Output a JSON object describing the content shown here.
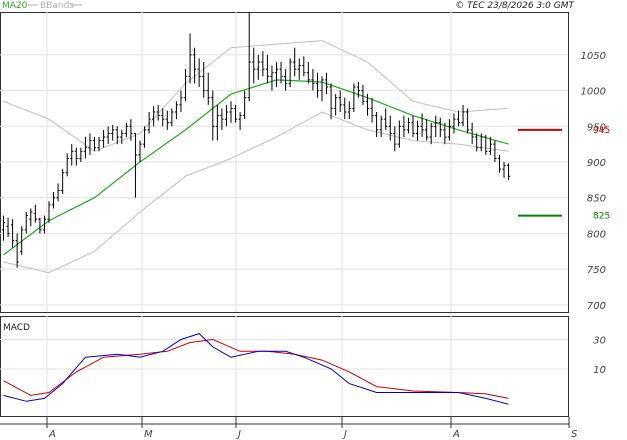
{
  "header": {
    "legend_ma": "MA20",
    "legend_bb": "BBands",
    "copyright": "© TEC 23/8/2026 3:0 GMT"
  },
  "macd_panel": {
    "title": "MACD"
  },
  "chart_data": [
    {
      "type": "line",
      "panel": "price",
      "x_labels": [
        "A",
        "M",
        "J",
        "J",
        "A",
        "S"
      ],
      "y_ticks": [
        1050,
        1000,
        950,
        900,
        850,
        800,
        750,
        700
      ],
      "ylim": [
        690,
        1110
      ],
      "grid": true,
      "levels": [
        {
          "name": "resistance",
          "label": "945",
          "value": 945,
          "color": "#cc0000"
        },
        {
          "name": "support",
          "label": "825",
          "value": 825,
          "color": "#008800"
        }
      ],
      "series_styles": {
        "ma20": "#22aa22",
        "bands": "#c0c0c0",
        "bars": "#000000"
      },
      "bars": [
        [
          0,
          805,
          825,
          790,
          815
        ],
        [
          1,
          810,
          822,
          795,
          800
        ],
        [
          2,
          812,
          820,
          780,
          790
        ],
        [
          3,
          790,
          800,
          752,
          760
        ],
        [
          4,
          775,
          810,
          770,
          805
        ],
        [
          5,
          805,
          830,
          800,
          825
        ],
        [
          6,
          820,
          835,
          810,
          830
        ],
        [
          7,
          828,
          840,
          815,
          820
        ],
        [
          8,
          820,
          822,
          800,
          805
        ],
        [
          9,
          805,
          825,
          800,
          820
        ],
        [
          10,
          820,
          845,
          815,
          840
        ],
        [
          11,
          840,
          858,
          835,
          850
        ],
        [
          12,
          850,
          870,
          845,
          860
        ],
        [
          13,
          860,
          890,
          855,
          885
        ],
        [
          14,
          885,
          912,
          880,
          905
        ],
        [
          15,
          905,
          925,
          895,
          915
        ],
        [
          16,
          915,
          920,
          895,
          905
        ],
        [
          17,
          905,
          920,
          900,
          915
        ],
        [
          18,
          915,
          935,
          905,
          920
        ],
        [
          19,
          920,
          940,
          910,
          930
        ],
        [
          20,
          930,
          935,
          915,
          920
        ],
        [
          21,
          920,
          935,
          915,
          930
        ],
        [
          22,
          930,
          945,
          920,
          935
        ],
        [
          23,
          935,
          950,
          925,
          940
        ],
        [
          24,
          940,
          952,
          930,
          945
        ],
        [
          25,
          945,
          950,
          925,
          935
        ],
        [
          26,
          935,
          945,
          925,
          940
        ],
        [
          27,
          940,
          955,
          935,
          950
        ],
        [
          28,
          950,
          960,
          930,
          940
        ],
        [
          29,
          940,
          940,
          850,
          910
        ],
        [
          30,
          910,
          930,
          900,
          925
        ],
        [
          31,
          925,
          950,
          920,
          945
        ],
        [
          32,
          945,
          970,
          940,
          960
        ],
        [
          33,
          960,
          978,
          950,
          970
        ],
        [
          34,
          970,
          980,
          958,
          965
        ],
        [
          35,
          965,
          975,
          950,
          960
        ],
        [
          36,
          960,
          972,
          945,
          955
        ],
        [
          37,
          955,
          975,
          950,
          970
        ],
        [
          38,
          970,
          985,
          960,
          980
        ],
        [
          39,
          980,
          1000,
          970,
          990
        ],
        [
          40,
          990,
          1030,
          985,
          1020
        ],
        [
          41,
          1020,
          1080,
          1010,
          1050
        ],
        [
          42,
          1050,
          1060,
          1010,
          1030
        ],
        [
          43,
          1030,
          1045,
          1005,
          1020
        ],
        [
          44,
          1020,
          1040,
          990,
          1000
        ],
        [
          45,
          1000,
          1025,
          980,
          990
        ],
        [
          46,
          990,
          1000,
          930,
          950
        ],
        [
          47,
          950,
          980,
          930,
          965
        ],
        [
          48,
          965,
          975,
          945,
          960
        ],
        [
          49,
          960,
          980,
          950,
          970
        ],
        [
          50,
          970,
          985,
          955,
          975
        ],
        [
          51,
          975,
          980,
          955,
          960
        ],
        [
          52,
          960,
          970,
          945,
          965
        ],
        [
          53,
          965,
          1000,
          960,
          990
        ],
        [
          54,
          990,
          1110,
          985,
          1040
        ],
        [
          55,
          1040,
          1060,
          1010,
          1030
        ],
        [
          56,
          1030,
          1050,
          1015,
          1040
        ],
        [
          57,
          1040,
          1055,
          1020,
          1030
        ],
        [
          58,
          1030,
          1050,
          1010,
          1020
        ],
        [
          59,
          1020,
          1035,
          1000,
          1025
        ],
        [
          60,
          1025,
          1040,
          1005,
          1030
        ],
        [
          61,
          1030,
          1040,
          1010,
          1020
        ],
        [
          62,
          1020,
          1030,
          1000,
          1010
        ],
        [
          63,
          1010,
          1045,
          1005,
          1040
        ],
        [
          64,
          1040,
          1060,
          1020,
          1030
        ],
        [
          65,
          1030,
          1045,
          1015,
          1035
        ],
        [
          66,
          1035,
          1048,
          1020,
          1025
        ],
        [
          67,
          1025,
          1040,
          1010,
          1015
        ],
        [
          68,
          1015,
          1030,
          1000,
          1010
        ],
        [
          69,
          1010,
          1025,
          990,
          1000
        ],
        [
          70,
          1000,
          1020,
          985,
          1015
        ],
        [
          71,
          1015,
          1025,
          995,
          1005
        ],
        [
          72,
          1005,
          1010,
          960,
          975
        ],
        [
          73,
          975,
          995,
          965,
          990
        ],
        [
          74,
          990,
          1000,
          970,
          980
        ],
        [
          75,
          980,
          990,
          960,
          970
        ],
        [
          76,
          970,
          985,
          960,
          975
        ],
        [
          77,
          975,
          1010,
          970,
          1005
        ],
        [
          78,
          1005,
          1012,
          990,
          1000
        ],
        [
          79,
          1000,
          1008,
          980,
          985
        ],
        [
          80,
          985,
          995,
          965,
          975
        ],
        [
          81,
          975,
          990,
          955,
          965
        ],
        [
          82,
          965,
          970,
          935,
          945
        ],
        [
          83,
          945,
          965,
          935,
          960
        ],
        [
          84,
          960,
          975,
          945,
          950
        ],
        [
          85,
          950,
          965,
          930,
          940
        ],
        [
          86,
          940,
          950,
          915,
          925
        ],
        [
          87,
          925,
          958,
          920,
          950
        ],
        [
          88,
          950,
          965,
          935,
          945
        ],
        [
          89,
          945,
          962,
          940,
          955
        ],
        [
          90,
          955,
          965,
          935,
          940
        ],
        [
          91,
          940,
          958,
          930,
          950
        ],
        [
          92,
          950,
          968,
          935,
          945
        ],
        [
          93,
          945,
          960,
          930,
          935
        ],
        [
          94,
          935,
          955,
          925,
          950
        ],
        [
          95,
          950,
          965,
          935,
          955
        ],
        [
          96,
          955,
          962,
          935,
          945
        ],
        [
          97,
          945,
          955,
          925,
          935
        ],
        [
          98,
          935,
          960,
          930,
          950
        ],
        [
          99,
          950,
          968,
          940,
          960
        ],
        [
          100,
          960,
          972,
          950,
          955
        ],
        [
          101,
          955,
          980,
          950,
          970
        ],
        [
          102,
          970,
          975,
          940,
          945
        ],
        [
          103,
          945,
          955,
          925,
          935
        ],
        [
          104,
          935,
          940,
          915,
          920
        ],
        [
          105,
          920,
          940,
          915,
          935
        ],
        [
          106,
          935,
          938,
          910,
          915
        ],
        [
          107,
          915,
          935,
          910,
          925
        ],
        [
          108,
          925,
          930,
          900,
          905
        ],
        [
          109,
          905,
          910,
          885,
          890
        ],
        [
          110,
          890,
          900,
          878,
          895
        ],
        [
          111,
          895,
          898,
          875,
          880
        ]
      ],
      "ma20": [
        [
          0,
          770
        ],
        [
          10,
          818
        ],
        [
          20,
          850
        ],
        [
          30,
          900
        ],
        [
          40,
          945
        ],
        [
          50,
          995
        ],
        [
          60,
          1015
        ],
        [
          70,
          1012
        ],
        [
          80,
          990
        ],
        [
          90,
          965
        ],
        [
          100,
          945
        ],
        [
          111,
          925
        ]
      ],
      "bb_upper": [
        [
          0,
          985
        ],
        [
          10,
          960
        ],
        [
          20,
          915
        ],
        [
          30,
          940
        ],
        [
          40,
          1010
        ],
        [
          50,
          1060
        ],
        [
          60,
          1065
        ],
        [
          70,
          1070
        ],
        [
          80,
          1040
        ],
        [
          90,
          985
        ],
        [
          100,
          970
        ],
        [
          111,
          975
        ]
      ],
      "bb_lower": [
        [
          0,
          760
        ],
        [
          10,
          745
        ],
        [
          20,
          775
        ],
        [
          30,
          830
        ],
        [
          40,
          880
        ],
        [
          50,
          905
        ],
        [
          60,
          935
        ],
        [
          70,
          970
        ],
        [
          80,
          945
        ],
        [
          90,
          930
        ],
        [
          100,
          925
        ],
        [
          111,
          915
        ]
      ]
    },
    {
      "type": "line",
      "panel": "macd",
      "title": "MACD",
      "y_ticks": [
        30,
        10
      ],
      "ylim": [
        -22,
        46
      ],
      "grid": true,
      "series_styles": {
        "macd": "#0000cc",
        "signal": "#cc0000"
      },
      "macd": [
        [
          0,
          -8
        ],
        [
          5,
          -12
        ],
        [
          9,
          -10
        ],
        [
          13,
          0
        ],
        [
          18,
          18
        ],
        [
          25,
          20
        ],
        [
          30,
          18
        ],
        [
          35,
          22
        ],
        [
          39,
          30
        ],
        [
          43,
          34
        ],
        [
          46,
          25
        ],
        [
          50,
          18
        ],
        [
          56,
          22
        ],
        [
          62,
          22
        ],
        [
          66,
          18
        ],
        [
          72,
          10
        ],
        [
          76,
          0
        ],
        [
          82,
          -6
        ],
        [
          90,
          -6
        ],
        [
          100,
          -6
        ],
        [
          106,
          -10
        ],
        [
          111,
          -14
        ]
      ],
      "signal": [
        [
          0,
          2
        ],
        [
          6,
          -8
        ],
        [
          10,
          -6
        ],
        [
          16,
          8
        ],
        [
          22,
          18
        ],
        [
          30,
          20
        ],
        [
          36,
          22
        ],
        [
          41,
          28
        ],
        [
          46,
          30
        ],
        [
          52,
          22
        ],
        [
          58,
          22
        ],
        [
          64,
          20
        ],
        [
          70,
          16
        ],
        [
          76,
          8
        ],
        [
          82,
          -2
        ],
        [
          90,
          -5
        ],
        [
          100,
          -6
        ],
        [
          106,
          -7
        ],
        [
          111,
          -10
        ]
      ]
    }
  ]
}
